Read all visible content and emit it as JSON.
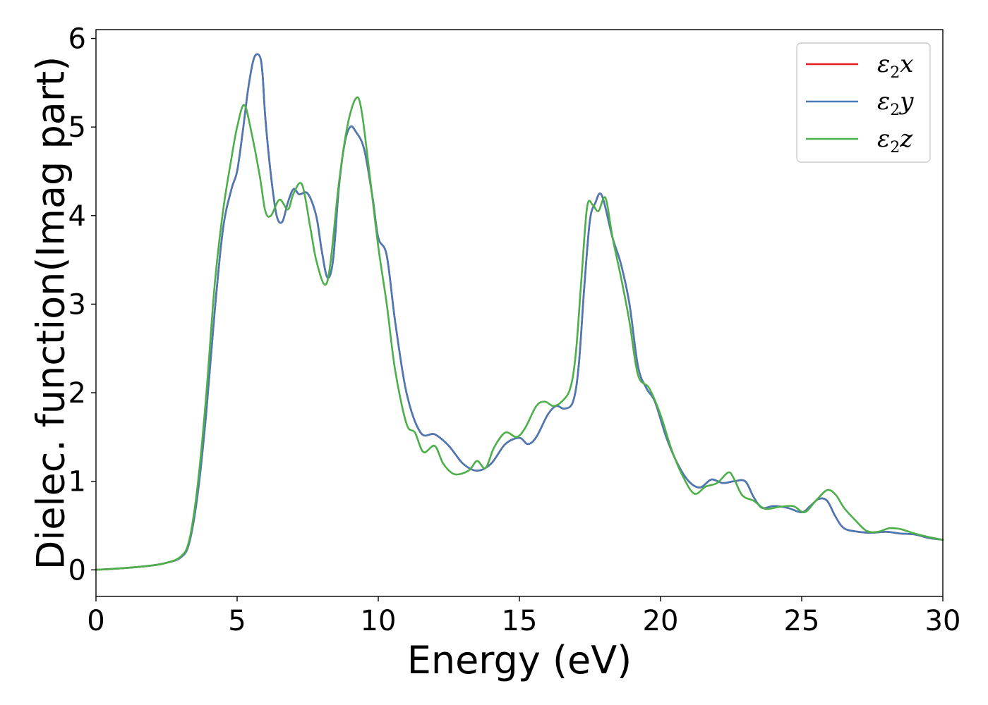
{
  "chart_data": {
    "type": "line",
    "title": "",
    "xlabel": "Energy (eV)",
    "ylabel": "Dielec. function(Imag part)",
    "xlim": [
      0,
      30
    ],
    "ylim": [
      -0.3,
      6.1
    ],
    "xticks": [
      0,
      5,
      10,
      15,
      20,
      25,
      30
    ],
    "xtick_labels": [
      "0",
      "5",
      "10",
      "15",
      "20",
      "25",
      "30"
    ],
    "yticks": [
      0,
      1,
      2,
      3,
      4,
      5,
      6
    ],
    "ytick_labels": [
      "0",
      "1",
      "2",
      "3",
      "4",
      "5",
      "6"
    ],
    "grid": false,
    "legend_position": "top-right",
    "series": [
      {
        "name": "ε2x",
        "legend_main": "ε",
        "legend_sub": "2",
        "legend_suffix": "x",
        "color": "#e41a1c",
        "x": [
          0,
          1,
          2,
          2.5,
          3,
          3.3,
          3.6,
          3.9,
          4.2,
          4.5,
          4.8,
          5.0,
          5.2,
          5.4,
          5.6,
          5.8,
          5.9,
          6.0,
          6.2,
          6.4,
          6.6,
          6.8,
          7.0,
          7.2,
          7.5,
          7.8,
          8.0,
          8.2,
          8.4,
          8.6,
          8.8,
          9.0,
          9.2,
          9.5,
          9.8,
          10.0,
          10.3,
          10.6,
          11.0,
          11.5,
          12.0,
          12.5,
          13.0,
          13.5,
          14.0,
          14.5,
          15.0,
          15.3,
          15.6,
          16.0,
          16.3,
          16.6,
          16.9,
          17.1,
          17.3,
          17.5,
          17.7,
          17.85,
          18.0,
          18.3,
          18.6,
          18.9,
          19.2,
          19.5,
          19.8,
          20.2,
          20.6,
          21.0,
          21.4,
          21.8,
          22.2,
          22.6,
          23.0,
          23.3,
          23.6,
          24.0,
          24.5,
          25.0,
          25.3,
          25.6,
          25.9,
          26.2,
          26.5,
          27.0,
          27.5,
          28.0,
          28.5,
          29.0,
          29.5,
          30.0
        ],
        "y": [
          0.0,
          0.02,
          0.05,
          0.08,
          0.14,
          0.3,
          0.85,
          1.75,
          2.9,
          3.85,
          4.3,
          4.5,
          4.95,
          5.45,
          5.78,
          5.8,
          5.6,
          5.1,
          4.45,
          4.0,
          3.93,
          4.15,
          4.3,
          4.24,
          4.25,
          4.0,
          3.6,
          3.3,
          3.5,
          4.3,
          4.8,
          5.0,
          4.95,
          4.75,
          4.2,
          3.75,
          3.55,
          2.8,
          2.0,
          1.55,
          1.53,
          1.4,
          1.2,
          1.12,
          1.2,
          1.42,
          1.49,
          1.42,
          1.5,
          1.75,
          1.85,
          1.82,
          1.9,
          2.3,
          3.2,
          3.95,
          4.15,
          4.25,
          4.15,
          3.75,
          3.45,
          3.0,
          2.3,
          2.05,
          1.9,
          1.5,
          1.2,
          1.0,
          0.93,
          1.02,
          0.98,
          1.0,
          1.0,
          0.82,
          0.7,
          0.72,
          0.7,
          0.65,
          0.72,
          0.8,
          0.78,
          0.6,
          0.47,
          0.43,
          0.42,
          0.43,
          0.41,
          0.4,
          0.36,
          0.34
        ]
      },
      {
        "name": "ε2y",
        "legend_main": "ε",
        "legend_sub": "2",
        "legend_suffix": "y",
        "color": "#4a7ab5",
        "x": [
          0,
          1,
          2,
          2.5,
          3,
          3.3,
          3.6,
          3.9,
          4.2,
          4.5,
          4.8,
          5.0,
          5.2,
          5.4,
          5.6,
          5.8,
          5.9,
          6.0,
          6.2,
          6.4,
          6.6,
          6.8,
          7.0,
          7.2,
          7.5,
          7.8,
          8.0,
          8.2,
          8.4,
          8.6,
          8.8,
          9.0,
          9.2,
          9.5,
          9.8,
          10.0,
          10.3,
          10.6,
          11.0,
          11.5,
          12.0,
          12.5,
          13.0,
          13.5,
          14.0,
          14.5,
          15.0,
          15.3,
          15.6,
          16.0,
          16.3,
          16.6,
          16.9,
          17.1,
          17.3,
          17.5,
          17.7,
          17.85,
          18.0,
          18.3,
          18.6,
          18.9,
          19.2,
          19.5,
          19.8,
          20.2,
          20.6,
          21.0,
          21.4,
          21.8,
          22.2,
          22.6,
          23.0,
          23.3,
          23.6,
          24.0,
          24.5,
          25.0,
          25.3,
          25.6,
          25.9,
          26.2,
          26.5,
          27.0,
          27.5,
          28.0,
          28.5,
          29.0,
          29.5,
          30.0
        ],
        "y": [
          0.0,
          0.02,
          0.05,
          0.08,
          0.14,
          0.3,
          0.85,
          1.75,
          2.9,
          3.85,
          4.3,
          4.5,
          4.95,
          5.45,
          5.78,
          5.8,
          5.6,
          5.1,
          4.45,
          4.0,
          3.93,
          4.15,
          4.3,
          4.24,
          4.25,
          4.0,
          3.6,
          3.3,
          3.5,
          4.3,
          4.8,
          5.0,
          4.95,
          4.75,
          4.2,
          3.75,
          3.55,
          2.8,
          2.0,
          1.55,
          1.53,
          1.4,
          1.2,
          1.12,
          1.2,
          1.42,
          1.49,
          1.42,
          1.5,
          1.75,
          1.85,
          1.82,
          1.9,
          2.3,
          3.2,
          3.95,
          4.15,
          4.25,
          4.15,
          3.75,
          3.45,
          3.0,
          2.3,
          2.05,
          1.9,
          1.5,
          1.2,
          1.0,
          0.93,
          1.02,
          0.98,
          1.0,
          1.0,
          0.82,
          0.7,
          0.72,
          0.7,
          0.65,
          0.72,
          0.8,
          0.78,
          0.6,
          0.47,
          0.43,
          0.42,
          0.43,
          0.41,
          0.4,
          0.36,
          0.34
        ]
      },
      {
        "name": "ε2z",
        "legend_main": "ε",
        "legend_sub": "2",
        "legend_suffix": "z",
        "color": "#4daf4a",
        "x": [
          0,
          1,
          2,
          2.5,
          3,
          3.3,
          3.6,
          3.9,
          4.2,
          4.5,
          4.8,
          5.0,
          5.25,
          5.5,
          5.8,
          6.0,
          6.2,
          6.5,
          6.8,
          7.0,
          7.3,
          7.6,
          7.8,
          8.1,
          8.3,
          8.6,
          8.9,
          9.2,
          9.4,
          9.7,
          10.0,
          10.3,
          10.6,
          11.0,
          11.3,
          11.6,
          12.0,
          12.3,
          12.7,
          13.2,
          13.5,
          13.8,
          14.1,
          14.5,
          14.9,
          15.2,
          15.6,
          15.9,
          16.2,
          16.5,
          16.8,
          17.0,
          17.2,
          17.4,
          17.6,
          17.8,
          18.05,
          18.3,
          18.6,
          18.9,
          19.2,
          19.6,
          20.0,
          20.4,
          20.8,
          21.2,
          21.6,
          22.0,
          22.4,
          22.6,
          22.9,
          23.3,
          23.7,
          24.2,
          24.7,
          25.1,
          25.5,
          25.9,
          26.2,
          26.5,
          26.9,
          27.3,
          27.7,
          28.1,
          28.5,
          29.0,
          29.5,
          30.0
        ],
        "y": [
          0.0,
          0.02,
          0.05,
          0.08,
          0.15,
          0.33,
          0.95,
          1.95,
          3.2,
          4.05,
          4.65,
          5.0,
          5.25,
          4.95,
          4.45,
          4.05,
          4.0,
          4.18,
          4.07,
          4.25,
          4.35,
          3.85,
          3.5,
          3.22,
          3.45,
          4.35,
          5.0,
          5.32,
          5.2,
          4.45,
          3.65,
          3.0,
          2.25,
          1.65,
          1.55,
          1.33,
          1.4,
          1.2,
          1.08,
          1.12,
          1.23,
          1.15,
          1.38,
          1.55,
          1.5,
          1.6,
          1.85,
          1.9,
          1.85,
          1.9,
          2.05,
          2.45,
          3.3,
          4.1,
          4.12,
          4.05,
          4.2,
          3.75,
          3.3,
          2.8,
          2.2,
          2.05,
          1.75,
          1.35,
          1.05,
          0.86,
          0.94,
          0.98,
          1.1,
          1.03,
          0.84,
          0.78,
          0.69,
          0.71,
          0.72,
          0.65,
          0.78,
          0.9,
          0.85,
          0.7,
          0.56,
          0.44,
          0.43,
          0.47,
          0.46,
          0.41,
          0.37,
          0.34
        ]
      }
    ]
  }
}
